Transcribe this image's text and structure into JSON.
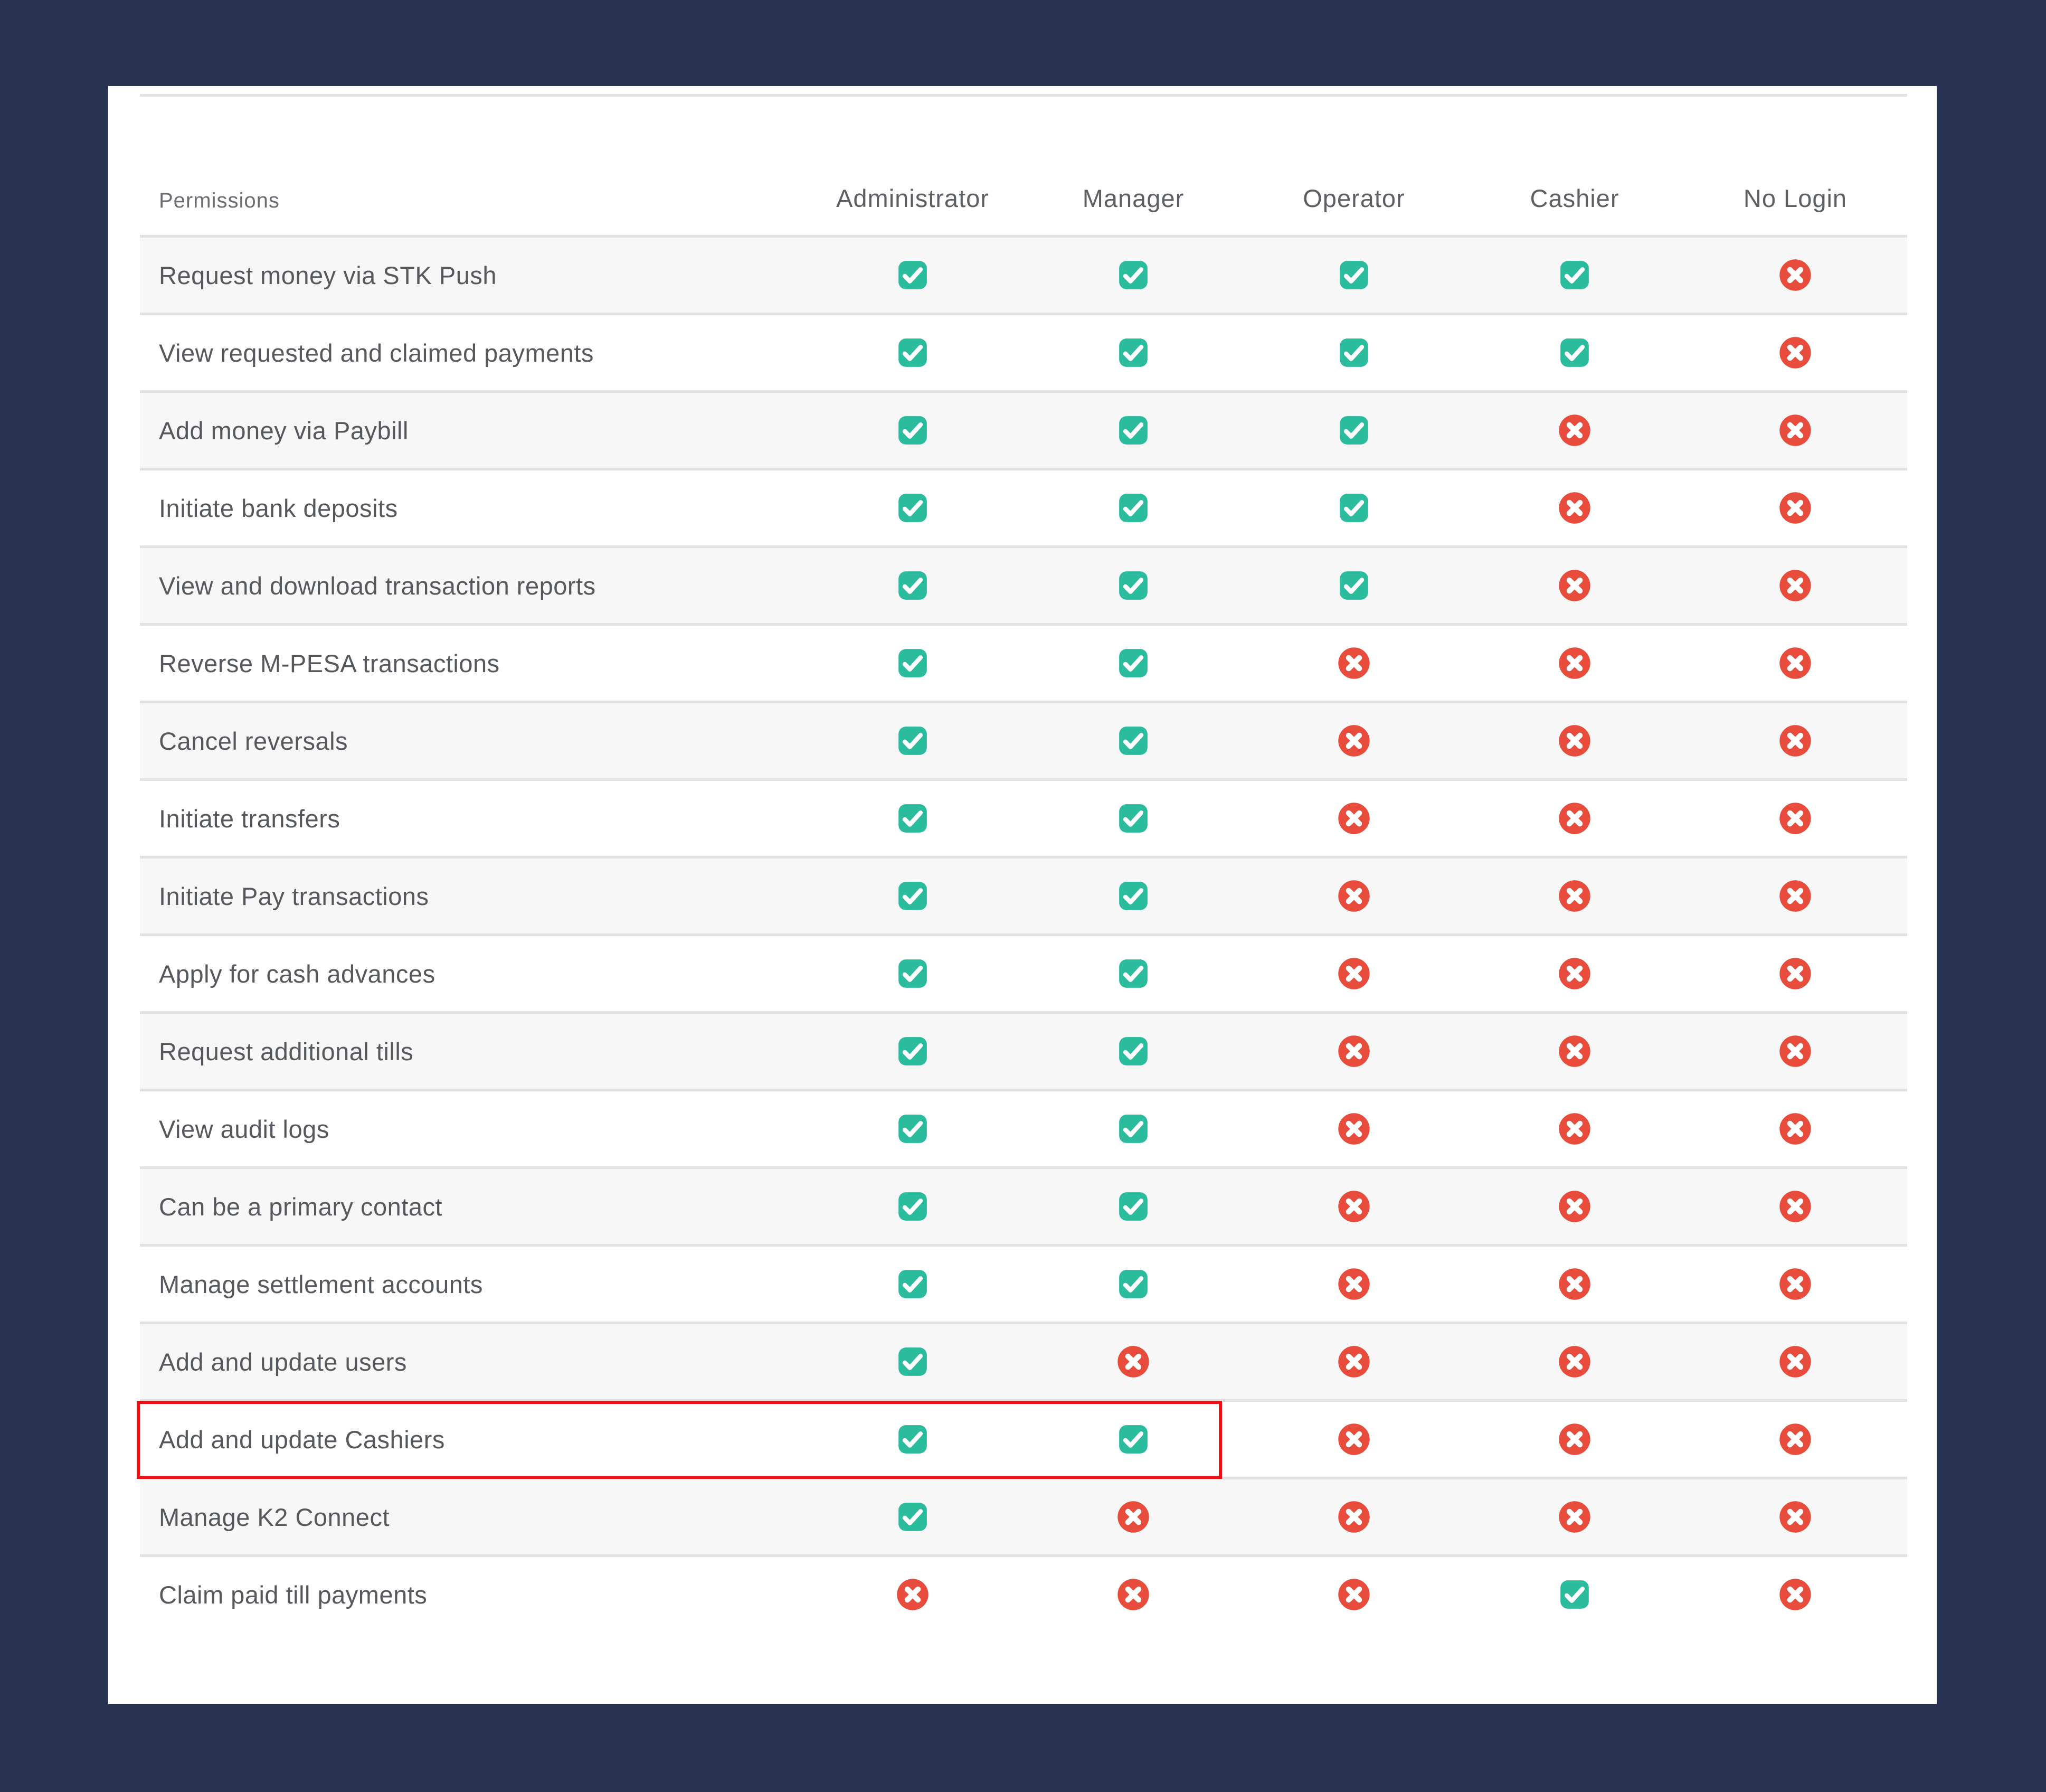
{
  "colors": {
    "page_background": "#273350",
    "card_background": "#ffffff",
    "row_stripe": "#f7f7f7",
    "divider": "#e2e2e2",
    "granted": "#2abc9c",
    "denied": "#e74c3c",
    "highlight_border": "#ee1111"
  },
  "table": {
    "header": {
      "permissions_label": "Permissions",
      "columns": [
        "Administrator",
        "Manager",
        "Operator",
        "Cashier",
        "No Login"
      ]
    },
    "icons": {
      "granted": "check-icon",
      "denied": "cross-icon"
    },
    "rows": [
      {
        "label": "Request money via STK Push",
        "permissions": [
          true,
          true,
          true,
          true,
          false
        ]
      },
      {
        "label": "View requested and claimed payments",
        "permissions": [
          true,
          true,
          true,
          true,
          false
        ]
      },
      {
        "label": "Add money via Paybill",
        "permissions": [
          true,
          true,
          true,
          false,
          false
        ]
      },
      {
        "label": "Initiate bank deposits",
        "permissions": [
          true,
          true,
          true,
          false,
          false
        ]
      },
      {
        "label": "View and download transaction reports",
        "permissions": [
          true,
          true,
          true,
          false,
          false
        ]
      },
      {
        "label": "Reverse M-PESA transactions",
        "permissions": [
          true,
          true,
          false,
          false,
          false
        ]
      },
      {
        "label": "Cancel reversals",
        "permissions": [
          true,
          true,
          false,
          false,
          false
        ]
      },
      {
        "label": "Initiate transfers",
        "permissions": [
          true,
          true,
          false,
          false,
          false
        ]
      },
      {
        "label": "Initiate Pay transactions",
        "permissions": [
          true,
          true,
          false,
          false,
          false
        ]
      },
      {
        "label": "Apply for cash advances",
        "permissions": [
          true,
          true,
          false,
          false,
          false
        ]
      },
      {
        "label": "Request additional tills",
        "permissions": [
          true,
          true,
          false,
          false,
          false
        ]
      },
      {
        "label": "View audit logs",
        "permissions": [
          true,
          true,
          false,
          false,
          false
        ]
      },
      {
        "label": "Can be a primary contact",
        "permissions": [
          true,
          true,
          false,
          false,
          false
        ]
      },
      {
        "label": "Manage settlement accounts",
        "permissions": [
          true,
          true,
          false,
          false,
          false
        ]
      },
      {
        "label": "Add and update users",
        "permissions": [
          true,
          false,
          false,
          false,
          false
        ]
      },
      {
        "label": "Add and update Cashiers",
        "permissions": [
          true,
          true,
          false,
          false,
          false
        ],
        "highlighted": true
      },
      {
        "label": "Manage K2 Connect",
        "permissions": [
          true,
          false,
          false,
          false,
          false
        ]
      },
      {
        "label": "Claim paid till payments",
        "permissions": [
          false,
          false,
          false,
          true,
          false
        ]
      }
    ],
    "highlight": {
      "row_label": "Add and update Cashiers",
      "covers": [
        "Permissions",
        "Administrator",
        "Manager"
      ]
    }
  }
}
